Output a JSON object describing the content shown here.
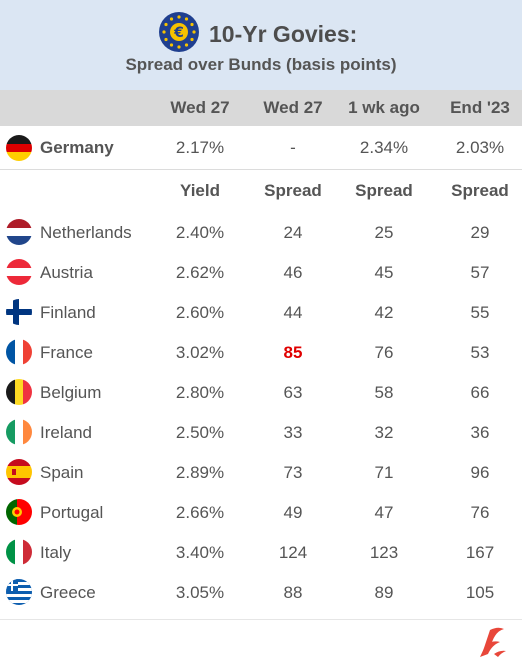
{
  "header": {
    "title": "10-Yr Govies:",
    "subtitle": "Spread over Bunds (basis points)"
  },
  "columns": [
    "Wed 27",
    "Wed 27",
    "1 wk ago",
    "End '23"
  ],
  "benchmark": {
    "name": "Germany",
    "flag": "germany-flag-icon",
    "values": [
      "2.17%",
      "-",
      "2.34%",
      "2.03%"
    ]
  },
  "subheader": [
    "Yield",
    "Spread",
    "Spread",
    "Spread"
  ],
  "rows": [
    {
      "name": "Netherlands",
      "flag": "netherlands-flag-icon",
      "yield": "2.40%",
      "spread": "24",
      "spread_1wk": "25",
      "spread_end23": "29"
    },
    {
      "name": "Austria",
      "flag": "austria-flag-icon",
      "yield": "2.62%",
      "spread": "46",
      "spread_1wk": "45",
      "spread_end23": "57"
    },
    {
      "name": "Finland",
      "flag": "finland-flag-icon",
      "yield": "2.60%",
      "spread": "44",
      "spread_1wk": "42",
      "spread_end23": "55"
    },
    {
      "name": "France",
      "flag": "france-flag-icon",
      "yield": "3.02%",
      "spread": "85",
      "spread_1wk": "76",
      "spread_end23": "53"
    },
    {
      "name": "Belgium",
      "flag": "belgium-flag-icon",
      "yield": "2.80%",
      "spread": "63",
      "spread_1wk": "58",
      "spread_end23": "66"
    },
    {
      "name": "Ireland",
      "flag": "ireland-flag-icon",
      "yield": "2.50%",
      "spread": "33",
      "spread_1wk": "32",
      "spread_end23": "36"
    },
    {
      "name": "Spain",
      "flag": "spain-flag-icon",
      "yield": "2.89%",
      "spread": "73",
      "spread_1wk": "71",
      "spread_end23": "96"
    },
    {
      "name": "Portugal",
      "flag": "portugal-flag-icon",
      "yield": "2.66%",
      "spread": "49",
      "spread_1wk": "47",
      "spread_end23": "76"
    },
    {
      "name": "Italy",
      "flag": "italy-flag-icon",
      "yield": "3.40%",
      "spread": "124",
      "spread_1wk": "123",
      "spread_end23": "167"
    },
    {
      "name": "Greece",
      "flag": "greece-flag-icon",
      "yield": "3.05%",
      "spread": "88",
      "spread_1wk": "89",
      "spread_end23": "105"
    }
  ],
  "highlight": {
    "row": "France",
    "column": "spread",
    "color": "#e00000"
  },
  "colors": {
    "header_bg": "#dbe6f3",
    "column_header_bg": "#d9d9d9",
    "highlight": "#e00000",
    "brand": "#e8473a"
  },
  "icons": {
    "logo": "euro-stars-logo-icon",
    "brand": "brand-logo-icon"
  },
  "chart_data": {
    "type": "table",
    "title": "10-Yr Govies:",
    "subtitle": "Spread over Bunds (basis points)",
    "columns": [
      "Wed 27",
      "Wed 27",
      "1 wk ago",
      "End '23"
    ],
    "benchmark": {
      "country": "Germany",
      "yield": 2.17,
      "spread": null,
      "yield_1wk": 2.34,
      "yield_end23": 2.03
    },
    "categories": [
      "Netherlands",
      "Austria",
      "Finland",
      "France",
      "Belgium",
      "Ireland",
      "Spain",
      "Portugal",
      "Italy",
      "Greece"
    ],
    "series": [
      {
        "name": "Yield",
        "values": [
          2.4,
          2.62,
          2.6,
          3.02,
          2.8,
          2.5,
          2.89,
          2.66,
          3.4,
          3.05
        ]
      },
      {
        "name": "Spread",
        "values": [
          24,
          46,
          44,
          85,
          63,
          33,
          73,
          49,
          124,
          88
        ]
      },
      {
        "name": "Spread",
        "values": [
          25,
          45,
          42,
          76,
          58,
          32,
          71,
          47,
          123,
          89
        ]
      },
      {
        "name": "Spread",
        "values": [
          29,
          57,
          55,
          53,
          66,
          36,
          96,
          76,
          167,
          105
        ]
      }
    ]
  }
}
